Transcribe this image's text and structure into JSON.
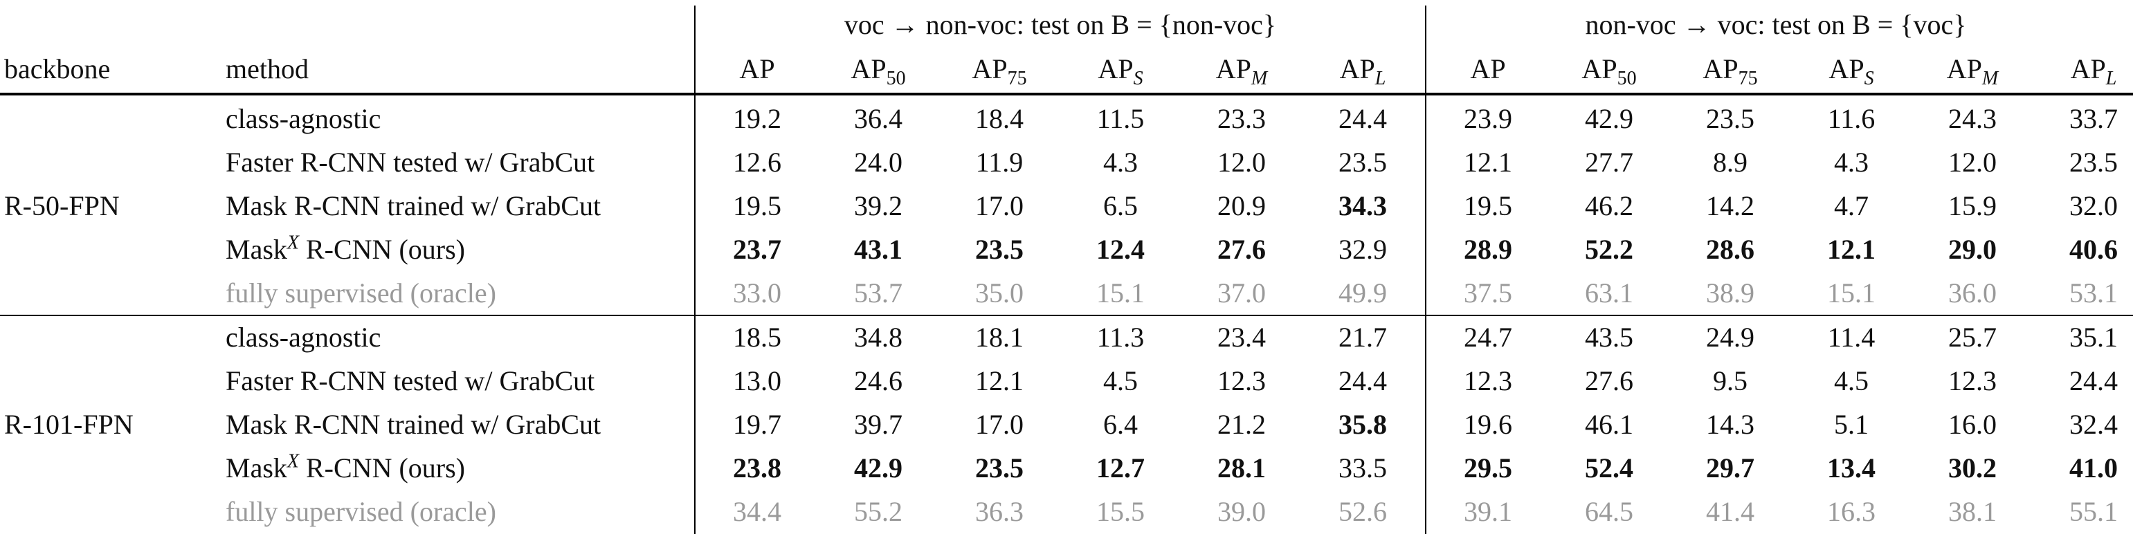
{
  "table": {
    "header": {
      "backbone": "backbone",
      "method": "method",
      "groups": [
        {
          "title": "voc → non-voc: test on B = {non-voc}",
          "columns": [
            {
              "base": "AP"
            },
            {
              "base": "AP",
              "sub": "50"
            },
            {
              "base": "AP",
              "sub": "75"
            },
            {
              "base": "AP",
              "sub": "S"
            },
            {
              "base": "AP",
              "sub": "M"
            },
            {
              "base": "AP",
              "sub": "L"
            }
          ]
        },
        {
          "title": "non-voc → voc: test on B = {voc}",
          "columns": [
            {
              "base": "AP"
            },
            {
              "base": "AP",
              "sub": "50"
            },
            {
              "base": "AP",
              "sub": "75"
            },
            {
              "base": "AP",
              "sub": "S"
            },
            {
              "base": "AP",
              "sub": "M"
            },
            {
              "base": "AP",
              "sub": "L"
            }
          ]
        }
      ]
    },
    "sections": [
      {
        "backbone": "R-50-FPN",
        "rows": [
          {
            "method": "class-agnostic",
            "values": [
              "19.2",
              "36.4",
              "18.4",
              "11.5",
              "23.3",
              "24.4",
              "23.9",
              "42.9",
              "23.5",
              "11.6",
              "24.3",
              "33.7"
            ],
            "bold": []
          },
          {
            "method": "Faster R-CNN tested w/ GrabCut",
            "values": [
              "12.6",
              "24.0",
              "11.9",
              "4.3",
              "12.0",
              "23.5",
              "12.1",
              "27.7",
              "8.9",
              "4.3",
              "12.0",
              "23.5"
            ],
            "bold": []
          },
          {
            "method": "Mask R-CNN trained w/ GrabCut",
            "values": [
              "19.5",
              "39.2",
              "17.0",
              "6.5",
              "20.9",
              "34.3",
              "19.5",
              "46.2",
              "14.2",
              "4.7",
              "15.9",
              "32.0"
            ],
            "bold": [
              5
            ]
          },
          {
            "method": {
              "base": "Mask",
              "sup": "X",
              "rest": " R-CNN (ours)"
            },
            "values": [
              "23.7",
              "43.1",
              "23.5",
              "12.4",
              "27.6",
              "32.9",
              "28.9",
              "52.2",
              "28.6",
              "12.1",
              "29.0",
              "40.6"
            ],
            "bold": [
              0,
              1,
              2,
              3,
              4,
              6,
              7,
              8,
              9,
              10,
              11
            ]
          },
          {
            "method": "fully supervised (oracle)",
            "values": [
              "33.0",
              "53.7",
              "35.0",
              "15.1",
              "37.0",
              "49.9",
              "37.5",
              "63.1",
              "38.9",
              "15.1",
              "36.0",
              "53.1"
            ],
            "bold": [],
            "style": "muted"
          }
        ]
      },
      {
        "backbone": "R-101-FPN",
        "rows": [
          {
            "method": "class-agnostic",
            "values": [
              "18.5",
              "34.8",
              "18.1",
              "11.3",
              "23.4",
              "21.7",
              "24.7",
              "43.5",
              "24.9",
              "11.4",
              "25.7",
              "35.1"
            ],
            "bold": []
          },
          {
            "method": "Faster R-CNN tested w/ GrabCut",
            "values": [
              "13.0",
              "24.6",
              "12.1",
              "4.5",
              "12.3",
              "24.4",
              "12.3",
              "27.6",
              "9.5",
              "4.5",
              "12.3",
              "24.4"
            ],
            "bold": []
          },
          {
            "method": "Mask R-CNN trained w/ GrabCut",
            "values": [
              "19.7",
              "39.7",
              "17.0",
              "6.4",
              "21.2",
              "35.8",
              "19.6",
              "46.1",
              "14.3",
              "5.1",
              "16.0",
              "32.4"
            ],
            "bold": [
              5
            ]
          },
          {
            "method": {
              "base": "Mask",
              "sup": "X",
              "rest": " R-CNN (ours)"
            },
            "values": [
              "23.8",
              "42.9",
              "23.5",
              "12.7",
              "28.1",
              "33.5",
              "29.5",
              "52.4",
              "29.7",
              "13.4",
              "30.2",
              "41.0"
            ],
            "bold": [
              0,
              1,
              2,
              3,
              4,
              6,
              7,
              8,
              9,
              10,
              11
            ]
          },
          {
            "method": "fully supervised (oracle)",
            "values": [
              "34.4",
              "55.2",
              "36.3",
              "15.5",
              "39.0",
              "52.6",
              "39.1",
              "64.5",
              "41.4",
              "16.3",
              "38.1",
              "55.1"
            ],
            "bold": [],
            "style": "muted"
          }
        ]
      }
    ]
  }
}
